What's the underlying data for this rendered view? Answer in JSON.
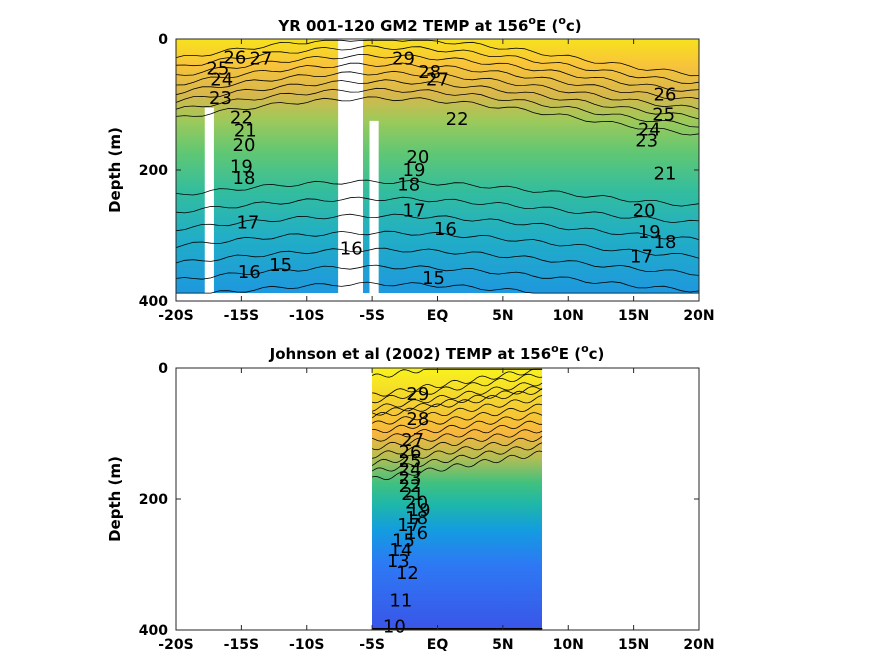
{
  "chart_data": [
    {
      "type": "contour",
      "title_main": "YR 001-120 GM2 TEMP at 156",
      "title_sup": "o",
      "title_mid": "E (",
      "title_sup2": "o",
      "title_end": "c)",
      "ylabel": "Depth (m)",
      "xlabel": "",
      "xticks": [
        "-20S",
        "-15S",
        "-10S",
        "-5S",
        "EQ",
        "5N",
        "10N",
        "15N",
        "20N"
      ],
      "xtick_values": [
        -20,
        -15,
        -10,
        -5,
        0,
        5,
        10,
        15,
        20
      ],
      "yticks": [
        "0",
        "200",
        "400"
      ],
      "ytick_values": [
        0,
        200,
        400
      ],
      "xlim": [
        -20,
        20
      ],
      "ylim": [
        0,
        400
      ],
      "y_reversed": true,
      "data_xrange": [
        -20,
        20
      ],
      "data_depth_max": 390,
      "gaps": [
        {
          "x0": -17.8,
          "x1": -17.1,
          "depth_top": 105
        },
        {
          "x0": -7.6,
          "x1": -5.7,
          "depth_top": 0
        },
        {
          "x0": -5.2,
          "x1": -4.5,
          "depth_top": 125
        }
      ],
      "contour_levels": [
        15,
        16,
        17,
        18,
        19,
        20,
        21,
        22,
        23,
        24,
        25,
        26,
        27,
        28,
        29
      ],
      "contour_labels": [
        {
          "text": "26",
          "x": -15.5,
          "depth": 28
        },
        {
          "text": "27",
          "x": -13.5,
          "depth": 30
        },
        {
          "text": "25",
          "x": -16.8,
          "depth": 45
        },
        {
          "text": "24",
          "x": -16.5,
          "depth": 62
        },
        {
          "text": "23",
          "x": -16.6,
          "depth": 90
        },
        {
          "text": "22",
          "x": -15.0,
          "depth": 120
        },
        {
          "text": "21",
          "x": -14.7,
          "depth": 140
        },
        {
          "text": "20",
          "x": -14.8,
          "depth": 162
        },
        {
          "text": "19",
          "x": -15.0,
          "depth": 195
        },
        {
          "text": "18",
          "x": -14.8,
          "depth": 212
        },
        {
          "text": "17",
          "x": -14.5,
          "depth": 280
        },
        {
          "text": "16",
          "x": -14.4,
          "depth": 356
        },
        {
          "text": "15",
          "x": -12.0,
          "depth": 345
        },
        {
          "text": "16",
          "x": -6.6,
          "depth": 320
        },
        {
          "text": "29",
          "x": -2.6,
          "depth": 30
        },
        {
          "text": "28",
          "x": -0.6,
          "depth": 50
        },
        {
          "text": "27",
          "x": 0.0,
          "depth": 62
        },
        {
          "text": "22",
          "x": 1.5,
          "depth": 122
        },
        {
          "text": "20",
          "x": -1.5,
          "depth": 180
        },
        {
          "text": "19",
          "x": -1.8,
          "depth": 200
        },
        {
          "text": "18",
          "x": -2.2,
          "depth": 222
        },
        {
          "text": "17",
          "x": -1.8,
          "depth": 262
        },
        {
          "text": "16",
          "x": 0.6,
          "depth": 290
        },
        {
          "text": "15",
          "x": -0.3,
          "depth": 365
        },
        {
          "text": "26",
          "x": 17.4,
          "depth": 85
        },
        {
          "text": "25",
          "x": 17.3,
          "depth": 115
        },
        {
          "text": "24",
          "x": 16.2,
          "depth": 138
        },
        {
          "text": "23",
          "x": 16.0,
          "depth": 155
        },
        {
          "text": "21",
          "x": 17.4,
          "depth": 205
        },
        {
          "text": "20",
          "x": 15.8,
          "depth": 262
        },
        {
          "text": "19",
          "x": 16.2,
          "depth": 295
        },
        {
          "text": "18",
          "x": 17.4,
          "depth": 310
        },
        {
          "text": "17",
          "x": 15.6,
          "depth": 332
        }
      ]
    },
    {
      "type": "contour",
      "title_main": "Johnson et al (2002) TEMP at 156",
      "title_sup": "o",
      "title_mid": "E (",
      "title_sup2": "o",
      "title_end": "c)",
      "ylabel": "Depth (m)",
      "xlabel": "",
      "xticks": [
        "-20S",
        "-15S",
        "-10S",
        "-5S",
        "EQ",
        "5N",
        "10N",
        "15N",
        "20N"
      ],
      "xtick_values": [
        -20,
        -15,
        -10,
        -5,
        0,
        5,
        10,
        15,
        20
      ],
      "yticks": [
        "0",
        "200",
        "400"
      ],
      "ytick_values": [
        0,
        200,
        400
      ],
      "xlim": [
        -20,
        20
      ],
      "ylim": [
        0,
        400
      ],
      "y_reversed": true,
      "data_xrange": [
        -5,
        8
      ],
      "data_depth_max": 400,
      "gaps": [],
      "contour_levels": [
        10,
        11,
        12,
        13,
        14,
        15,
        16,
        17,
        18,
        19,
        20,
        21,
        22,
        23,
        24,
        25,
        26,
        27,
        28,
        29
      ],
      "contour_labels": [
        {
          "text": "29",
          "x": -1.5,
          "depth": 40
        },
        {
          "text": "28",
          "x": -1.5,
          "depth": 78
        },
        {
          "text": "27",
          "x": -1.9,
          "depth": 110
        },
        {
          "text": "26",
          "x": -2.1,
          "depth": 128
        },
        {
          "text": "25",
          "x": -2.1,
          "depth": 142
        },
        {
          "text": "24",
          "x": -2.1,
          "depth": 155
        },
        {
          "text": "23",
          "x": -2.1,
          "depth": 168
        },
        {
          "text": "22",
          "x": -2.1,
          "depth": 180
        },
        {
          "text": "21",
          "x": -1.9,
          "depth": 192
        },
        {
          "text": "20",
          "x": -1.6,
          "depth": 205
        },
        {
          "text": "19",
          "x": -1.4,
          "depth": 217
        },
        {
          "text": "18",
          "x": -1.6,
          "depth": 229
        },
        {
          "text": "17",
          "x": -2.2,
          "depth": 240
        },
        {
          "text": "16",
          "x": -1.6,
          "depth": 252
        },
        {
          "text": "15",
          "x": -2.6,
          "depth": 263
        },
        {
          "text": "14",
          "x": -2.8,
          "depth": 278
        },
        {
          "text": "13",
          "x": -3.0,
          "depth": 295
        },
        {
          "text": "12",
          "x": -2.3,
          "depth": 313
        },
        {
          "text": "11",
          "x": -2.8,
          "depth": 355
        },
        {
          "text": "10",
          "x": -3.3,
          "depth": 395
        }
      ]
    }
  ]
}
